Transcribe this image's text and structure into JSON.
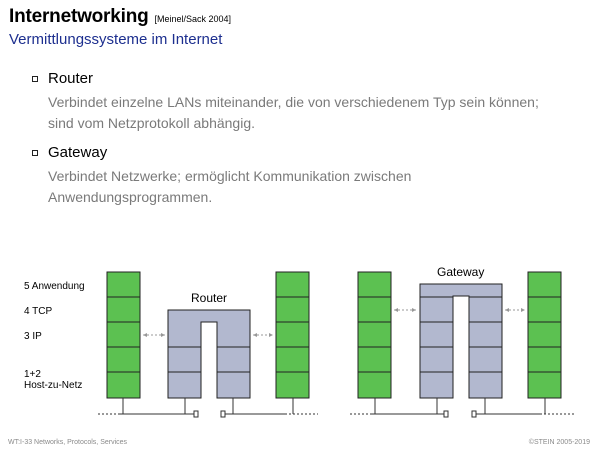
{
  "header": {
    "title": "Internetworking",
    "citation": "[Meinel/Sack 2004]",
    "subtitle": "Vermittlungssysteme im Internet"
  },
  "bullets": [
    {
      "heading": "Router",
      "text": "Verbindet einzelne LANs miteinander, die von verschiedenem Typ sein können; sind vom Netzprotokoll abhängig."
    },
    {
      "heading": "Gateway",
      "text": "Verbindet Netzwerke; ermöglicht Kommunikation zwischen Anwendungsprogrammen."
    }
  ],
  "diagram": {
    "layers": [
      "5 Anwendung",
      "4 TCP",
      "3 IP",
      "1+2\nHost-zu-Netz"
    ],
    "router_label": "Router",
    "gateway_label": "Gateway",
    "colors": {
      "host_stack": "#5cc151",
      "device_stack": "#b2b8cf",
      "outline": "#222222",
      "arrow": "#999999"
    }
  },
  "footer": {
    "left": "WT:I-33   Networks, Protocols, Services",
    "right": "©STEIN 2005-2019"
  }
}
